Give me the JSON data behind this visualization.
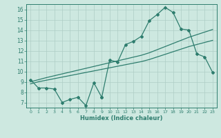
{
  "x_left": [
    0,
    1,
    2,
    3,
    4,
    5,
    6,
    7,
    8,
    9
  ],
  "y_left": [
    9.2,
    8.4,
    8.4,
    8.3,
    7.0,
    7.3,
    7.5,
    6.7,
    8.9,
    7.5
  ],
  "x_right": [
    9,
    10,
    11,
    12,
    13,
    14,
    15,
    16,
    17,
    18,
    19,
    20,
    21,
    22,
    23
  ],
  "y_right": [
    7.5,
    11.1,
    10.9,
    12.6,
    12.9,
    13.4,
    14.9,
    15.5,
    16.2,
    15.7,
    14.1,
    14.0,
    11.7,
    11.4,
    9.9
  ],
  "x_trend": [
    0,
    1,
    2,
    3,
    4,
    5,
    6,
    7,
    8,
    9,
    10,
    11,
    12,
    13,
    14,
    15,
    16,
    17,
    18,
    19,
    20,
    21,
    22,
    23
  ],
  "y_trend1": [
    8.8,
    9.0,
    9.15,
    9.3,
    9.45,
    9.6,
    9.75,
    9.9,
    10.05,
    10.2,
    10.35,
    10.5,
    10.65,
    10.8,
    10.95,
    11.15,
    11.4,
    11.65,
    11.9,
    12.15,
    12.4,
    12.6,
    12.8,
    13.0
  ],
  "y_trend2": [
    9.0,
    9.2,
    9.4,
    9.58,
    9.76,
    9.94,
    10.12,
    10.3,
    10.48,
    10.66,
    10.84,
    11.02,
    11.2,
    11.38,
    11.56,
    11.8,
    12.1,
    12.4,
    12.7,
    13.0,
    13.3,
    13.55,
    13.8,
    14.05
  ],
  "color": "#2e7d6e",
  "bg_color": "#cde8e0",
  "grid_color": "#aecdc5",
  "ylim": [
    6.5,
    16.5
  ],
  "xlim": [
    -0.5,
    23.5
  ],
  "xlabel": "Humidex (Indice chaleur)",
  "yticks": [
    7,
    8,
    9,
    10,
    11,
    12,
    13,
    14,
    15,
    16
  ],
  "xticks": [
    0,
    1,
    2,
    3,
    4,
    5,
    6,
    7,
    8,
    9,
    10,
    11,
    12,
    13,
    14,
    15,
    16,
    17,
    18,
    19,
    20,
    21,
    22,
    23
  ]
}
